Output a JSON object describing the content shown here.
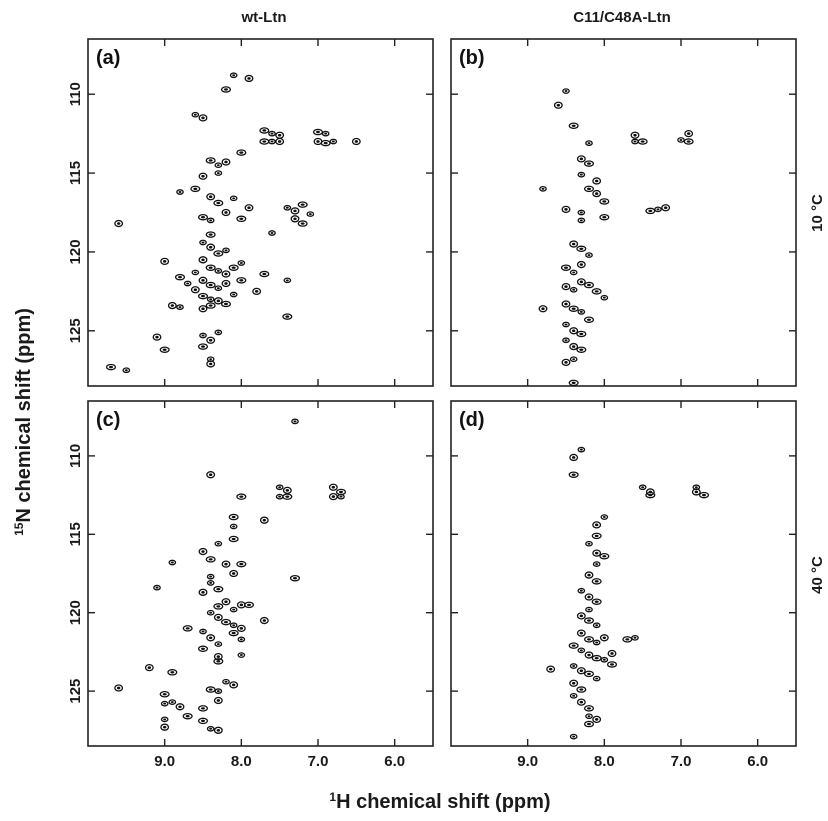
{
  "figure": {
    "column_titles": [
      "wt-Ltn",
      "C11/C48A-Ltn"
    ],
    "row_titles": [
      "10 °C",
      "40 °C"
    ],
    "xlabel_prefix": "1",
    "xlabel_text": "H chemical shift (ppm)",
    "ylabel_prefix": "15",
    "ylabel_text": "N chemical shift (ppm)",
    "colors": {
      "contour": "#111111",
      "frame": "#222222"
    }
  },
  "chart_data": [
    {
      "type": "scatter",
      "panel": "(a)",
      "column": "wt-Ltn",
      "row": "10 °C",
      "xlim": [
        10.0,
        5.5
      ],
      "ylim": [
        128.5,
        106.5
      ],
      "xticks": [
        "9.0",
        "8.0",
        "7.0",
        "6.0"
      ],
      "yticks": [
        "110",
        "115",
        "120",
        "125"
      ],
      "points": [
        [
          8.1,
          108.8
        ],
        [
          7.9,
          109.0
        ],
        [
          8.2,
          109.7
        ],
        [
          8.6,
          111.3
        ],
        [
          8.5,
          111.5
        ],
        [
          7.7,
          112.3
        ],
        [
          7.6,
          112.5
        ],
        [
          7.5,
          112.6
        ],
        [
          7.7,
          113.0
        ],
        [
          7.6,
          113.0
        ],
        [
          7.5,
          113.0
        ],
        [
          7.0,
          112.4
        ],
        [
          6.9,
          112.5
        ],
        [
          7.0,
          113.0
        ],
        [
          6.9,
          113.1
        ],
        [
          6.8,
          113.0
        ],
        [
          6.5,
          113.0
        ],
        [
          8.4,
          114.2
        ],
        [
          8.3,
          114.5
        ],
        [
          8.2,
          114.3
        ],
        [
          8.0,
          113.7
        ],
        [
          8.3,
          115.0
        ],
        [
          8.5,
          115.2
        ],
        [
          8.6,
          116.0
        ],
        [
          8.8,
          116.2
        ],
        [
          8.4,
          116.5
        ],
        [
          8.3,
          116.9
        ],
        [
          8.1,
          116.6
        ],
        [
          7.9,
          117.2
        ],
        [
          8.5,
          117.8
        ],
        [
          8.4,
          118.0
        ],
        [
          8.2,
          117.5
        ],
        [
          8.0,
          117.9
        ],
        [
          7.4,
          117.2
        ],
        [
          7.3,
          117.4
        ],
        [
          7.2,
          117.0
        ],
        [
          7.1,
          117.6
        ],
        [
          7.3,
          117.9
        ],
        [
          7.2,
          118.2
        ],
        [
          7.6,
          118.8
        ],
        [
          9.6,
          118.2
        ],
        [
          8.4,
          118.9
        ],
        [
          8.5,
          119.4
        ],
        [
          8.4,
          119.7
        ],
        [
          8.3,
          120.1
        ],
        [
          8.2,
          119.9
        ],
        [
          8.5,
          120.5
        ],
        [
          8.4,
          121.0
        ],
        [
          8.3,
          121.2
        ],
        [
          8.2,
          121.4
        ],
        [
          8.1,
          121.0
        ],
        [
          8.6,
          121.3
        ],
        [
          8.5,
          121.8
        ],
        [
          8.4,
          122.1
        ],
        [
          8.3,
          122.3
        ],
        [
          8.2,
          122.0
        ],
        [
          8.0,
          121.8
        ],
        [
          8.0,
          120.7
        ],
        [
          9.0,
          120.6
        ],
        [
          8.8,
          121.6
        ],
        [
          8.7,
          122.0
        ],
        [
          8.6,
          122.4
        ],
        [
          8.5,
          122.8
        ],
        [
          8.4,
          123.0
        ],
        [
          8.3,
          123.1
        ],
        [
          8.2,
          123.3
        ],
        [
          8.1,
          122.7
        ],
        [
          7.8,
          122.5
        ],
        [
          7.7,
          121.4
        ],
        [
          7.4,
          121.8
        ],
        [
          8.5,
          123.6
        ],
        [
          8.4,
          123.4
        ],
        [
          8.8,
          123.5
        ],
        [
          8.9,
          123.4
        ],
        [
          7.4,
          124.1
        ],
        [
          8.5,
          125.3
        ],
        [
          8.4,
          125.6
        ],
        [
          8.5,
          126.0
        ],
        [
          8.3,
          125.1
        ],
        [
          9.1,
          125.4
        ],
        [
          9.0,
          126.2
        ],
        [
          8.4,
          126.8
        ],
        [
          8.4,
          127.1
        ],
        [
          9.7,
          127.3
        ],
        [
          9.5,
          127.5
        ]
      ]
    },
    {
      "type": "scatter",
      "panel": "(b)",
      "column": "C11/C48A-Ltn",
      "row": "10 °C",
      "xlim": [
        10.0,
        5.5
      ],
      "ylim": [
        128.5,
        106.5
      ],
      "xticks": [
        "9.0",
        "8.0",
        "7.0",
        "6.0"
      ],
      "yticks": [
        "110",
        "115",
        "120",
        "125"
      ],
      "points": [
        [
          8.5,
          109.8
        ],
        [
          8.6,
          110.7
        ],
        [
          8.4,
          112.0
        ],
        [
          8.2,
          113.1
        ],
        [
          7.6,
          112.6
        ],
        [
          7.5,
          113.0
        ],
        [
          7.6,
          113.0
        ],
        [
          6.9,
          112.5
        ],
        [
          6.9,
          113.0
        ],
        [
          7.0,
          112.9
        ],
        [
          8.3,
          114.1
        ],
        [
          8.2,
          114.4
        ],
        [
          8.3,
          115.1
        ],
        [
          8.1,
          115.5
        ],
        [
          8.2,
          116.0
        ],
        [
          8.8,
          116.0
        ],
        [
          8.1,
          116.3
        ],
        [
          8.0,
          116.8
        ],
        [
          7.3,
          117.3
        ],
        [
          7.2,
          117.2
        ],
        [
          7.4,
          117.4
        ],
        [
          8.3,
          117.5
        ],
        [
          8.5,
          117.3
        ],
        [
          8.0,
          117.8
        ],
        [
          8.3,
          118.0
        ],
        [
          8.4,
          119.5
        ],
        [
          8.3,
          119.8
        ],
        [
          8.2,
          120.2
        ],
        [
          8.3,
          120.8
        ],
        [
          8.5,
          121.0
        ],
        [
          8.4,
          121.3
        ],
        [
          8.3,
          121.9
        ],
        [
          8.2,
          122.1
        ],
        [
          8.4,
          122.4
        ],
        [
          8.5,
          122.2
        ],
        [
          8.1,
          122.5
        ],
        [
          8.0,
          122.9
        ],
        [
          8.5,
          123.3
        ],
        [
          8.4,
          123.6
        ],
        [
          8.3,
          123.8
        ],
        [
          8.8,
          123.6
        ],
        [
          8.2,
          124.3
        ],
        [
          8.5,
          124.6
        ],
        [
          8.4,
          125.0
        ],
        [
          8.3,
          125.2
        ],
        [
          8.5,
          125.6
        ],
        [
          8.4,
          126.0
        ],
        [
          8.3,
          126.2
        ],
        [
          8.4,
          126.8
        ],
        [
          8.5,
          127.0
        ],
        [
          8.4,
          128.3
        ]
      ]
    },
    {
      "type": "scatter",
      "panel": "(c)",
      "column": "wt-Ltn",
      "row": "40 °C",
      "xlim": [
        10.0,
        5.5
      ],
      "ylim": [
        128.5,
        106.5
      ],
      "xticks": [
        "9.0",
        "8.0",
        "7.0",
        "6.0"
      ],
      "yticks": [
        "110",
        "115",
        "120",
        "125"
      ],
      "points": [
        [
          7.3,
          107.8
        ],
        [
          8.4,
          111.2
        ],
        [
          8.0,
          112.6
        ],
        [
          7.5,
          112.0
        ],
        [
          7.4,
          112.2
        ],
        [
          7.4,
          112.6
        ],
        [
          7.5,
          112.6
        ],
        [
          6.8,
          112.0
        ],
        [
          6.7,
          112.3
        ],
        [
          6.7,
          112.6
        ],
        [
          6.8,
          112.6
        ],
        [
          8.1,
          113.9
        ],
        [
          8.1,
          114.5
        ],
        [
          7.7,
          114.1
        ],
        [
          8.1,
          115.3
        ],
        [
          8.3,
          115.6
        ],
        [
          8.5,
          116.1
        ],
        [
          8.4,
          116.6
        ],
        [
          8.9,
          116.8
        ],
        [
          8.2,
          116.9
        ],
        [
          8.0,
          116.9
        ],
        [
          8.4,
          117.7
        ],
        [
          8.1,
          117.5
        ],
        [
          7.3,
          117.8
        ],
        [
          8.4,
          118.1
        ],
        [
          8.5,
          118.7
        ],
        [
          8.3,
          118.5
        ],
        [
          9.1,
          118.4
        ],
        [
          8.2,
          119.3
        ],
        [
          8.3,
          119.6
        ],
        [
          8.1,
          119.8
        ],
        [
          8.0,
          119.5
        ],
        [
          7.9,
          119.5
        ],
        [
          8.4,
          120.0
        ],
        [
          8.3,
          120.3
        ],
        [
          8.2,
          120.6
        ],
        [
          8.1,
          120.8
        ],
        [
          8.0,
          121.0
        ],
        [
          8.1,
          121.3
        ],
        [
          8.0,
          121.7
        ],
        [
          7.7,
          120.5
        ],
        [
          8.7,
          121.0
        ],
        [
          8.5,
          121.2
        ],
        [
          8.4,
          121.6
        ],
        [
          8.5,
          122.3
        ],
        [
          8.3,
          122.0
        ],
        [
          8.3,
          122.8
        ],
        [
          8.3,
          123.1
        ],
        [
          8.0,
          122.7
        ],
        [
          9.2,
          123.5
        ],
        [
          8.9,
          123.8
        ],
        [
          8.2,
          124.4
        ],
        [
          8.1,
          124.6
        ],
        [
          8.4,
          124.9
        ],
        [
          8.3,
          125.0
        ],
        [
          8.3,
          125.6
        ],
        [
          8.5,
          126.1
        ],
        [
          8.9,
          125.7
        ],
        [
          9.6,
          124.8
        ],
        [
          9.0,
          125.2
        ],
        [
          9.0,
          125.8
        ],
        [
          8.8,
          126.0
        ],
        [
          8.7,
          126.6
        ],
        [
          9.0,
          126.8
        ],
        [
          9.0,
          127.3
        ],
        [
          8.5,
          126.9
        ],
        [
          8.4,
          127.4
        ],
        [
          8.3,
          127.5
        ]
      ]
    },
    {
      "type": "scatter",
      "panel": "(d)",
      "column": "C11/C48A-Ltn",
      "row": "40 °C",
      "xlim": [
        10.0,
        5.5
      ],
      "ylim": [
        128.5,
        106.5
      ],
      "xticks": [
        "9.0",
        "8.0",
        "7.0",
        "6.0"
      ],
      "yticks": [
        "110",
        "115",
        "120",
        "125"
      ],
      "points": [
        [
          8.3,
          109.6
        ],
        [
          8.4,
          110.1
        ],
        [
          8.4,
          111.2
        ],
        [
          7.5,
          112.0
        ],
        [
          7.4,
          112.3
        ],
        [
          7.4,
          112.5
        ],
        [
          6.8,
          112.0
        ],
        [
          6.8,
          112.3
        ],
        [
          6.7,
          112.5
        ],
        [
          8.0,
          113.9
        ],
        [
          8.1,
          114.4
        ],
        [
          8.1,
          115.1
        ],
        [
          8.2,
          115.6
        ],
        [
          8.1,
          116.2
        ],
        [
          8.0,
          116.4
        ],
        [
          8.1,
          116.9
        ],
        [
          8.2,
          117.6
        ],
        [
          8.1,
          118.0
        ],
        [
          8.3,
          118.6
        ],
        [
          8.2,
          119.0
        ],
        [
          8.1,
          119.3
        ],
        [
          8.2,
          119.8
        ],
        [
          8.3,
          120.2
        ],
        [
          8.2,
          120.5
        ],
        [
          8.1,
          120.8
        ],
        [
          8.3,
          121.3
        ],
        [
          8.2,
          121.7
        ],
        [
          8.1,
          121.9
        ],
        [
          8.0,
          121.6
        ],
        [
          8.4,
          122.1
        ],
        [
          8.3,
          122.4
        ],
        [
          8.2,
          122.7
        ],
        [
          8.1,
          122.9
        ],
        [
          8.0,
          123.0
        ],
        [
          7.9,
          122.6
        ],
        [
          7.7,
          121.7
        ],
        [
          8.4,
          123.4
        ],
        [
          8.3,
          123.7
        ],
        [
          8.2,
          123.9
        ],
        [
          8.1,
          124.2
        ],
        [
          8.4,
          124.5
        ],
        [
          8.3,
          124.9
        ],
        [
          8.4,
          125.3
        ],
        [
          8.3,
          125.7
        ],
        [
          8.2,
          126.1
        ],
        [
          8.2,
          126.6
        ],
        [
          8.1,
          126.8
        ],
        [
          8.2,
          127.1
        ],
        [
          8.4,
          127.9
        ],
        [
          8.7,
          123.6
        ],
        [
          7.9,
          123.3
        ],
        [
          7.6,
          121.6
        ]
      ]
    }
  ]
}
